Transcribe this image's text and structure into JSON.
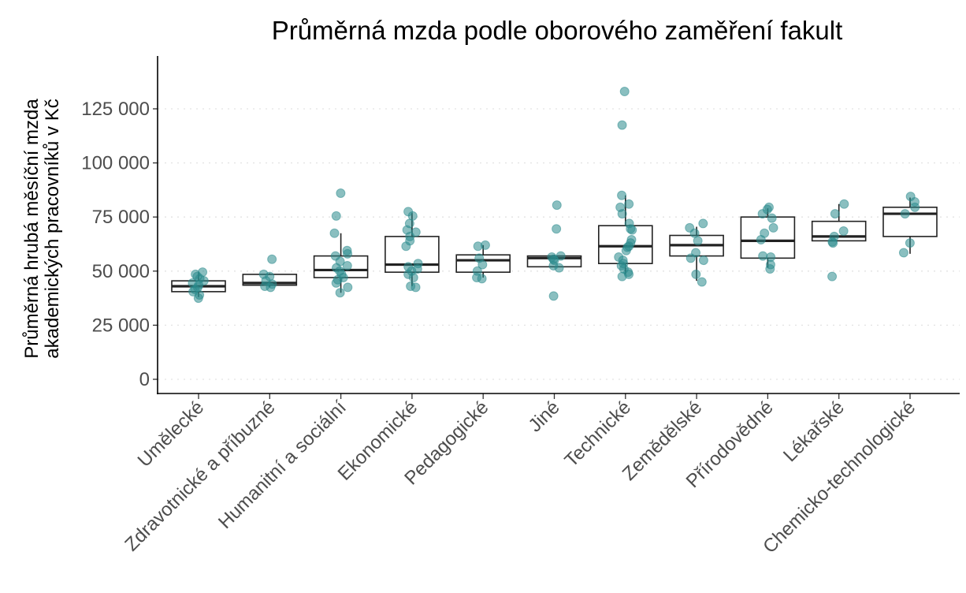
{
  "chart_data": {
    "type": "box",
    "title": "Průměrná mzda podle oborového zaměření fakult",
    "ylabel": [
      "Průměrná hrubá měsíční mzda",
      "akademických pracovníků v Kč"
    ],
    "xlabel": "",
    "ylim": [
      -7000,
      150000
    ],
    "yticks": [
      0,
      25000,
      50000,
      75000,
      100000,
      125000
    ],
    "ytick_labels": [
      "0",
      "25 000",
      "50 000",
      "75 000",
      "100 000",
      "125 000"
    ],
    "grid": "horizontal dotted major",
    "legend": "none",
    "point_color": "#2a8a8c",
    "categories": [
      "Umělecké",
      "Zdravotnické a příbuzné",
      "Humanitní a sociální",
      "Ekonomické",
      "Pedagogické",
      "Jiné",
      "Technické",
      "Zemědělské",
      "Přírodovědné",
      "Lékařské",
      "Chemicko-technologické"
    ],
    "boxes": [
      {
        "category": "Umělecké",
        "whisker_low": 38000,
        "q1": 40500,
        "median": 43000,
        "q3": 45500,
        "whisker_high": 49500
      },
      {
        "category": "Zdravotnické a příbuzné",
        "whisker_low": 42500,
        "q1": 43500,
        "median": 44500,
        "q3": 48500,
        "whisker_high": 49000
      },
      {
        "category": "Humanitní a sociální",
        "whisker_low": 40000,
        "q1": 47000,
        "median": 50500,
        "q3": 57000,
        "whisker_high": 67500
      },
      {
        "category": "Ekonomické",
        "whisker_low": 43000,
        "q1": 49500,
        "median": 53000,
        "q3": 66000,
        "whisker_high": 77000
      },
      {
        "category": "Pedagogické",
        "whisker_low": 47000,
        "q1": 49500,
        "median": 55000,
        "q3": 57500,
        "whisker_high": 62000
      },
      {
        "category": "Jiné",
        "whisker_low": 52000,
        "q1": 52000,
        "median": 56000,
        "q3": 57000,
        "whisker_high": 57500
      },
      {
        "category": "Technické",
        "whisker_low": 48500,
        "q1": 53500,
        "median": 61500,
        "q3": 71000,
        "whisker_high": 85000
      },
      {
        "category": "Zemědělské",
        "whisker_low": 45500,
        "q1": 57000,
        "median": 62000,
        "q3": 66500,
        "whisker_high": 70500
      },
      {
        "category": "Přírodovědné",
        "whisker_low": 51500,
        "q1": 56000,
        "median": 64000,
        "q3": 75000,
        "whisker_high": 79000
      },
      {
        "category": "Lékařské",
        "whisker_low": 64000,
        "q1": 64000,
        "median": 66000,
        "q3": 73000,
        "whisker_high": 81000
      },
      {
        "category": "Chemicko-technologické",
        "whisker_low": 58000,
        "q1": 66000,
        "median": 76500,
        "q3": 79500,
        "whisker_high": 84000
      }
    ],
    "points": [
      {
        "category": "Umělecké",
        "values": [
          37500,
          39000,
          40500,
          41500,
          42500,
          43500,
          44500,
          45500,
          46500,
          47500,
          48500,
          49500
        ]
      },
      {
        "category": "Zdravotnické a příbuzné",
        "values": [
          55500,
          48500,
          47500,
          45500,
          44000,
          43000,
          42500
        ]
      },
      {
        "category": "Humanitní a sociální",
        "values": [
          86000,
          75500,
          67500,
          59500,
          58000,
          57000,
          54500,
          52500,
          51500,
          50000,
          48500,
          47000,
          46000,
          44500,
          42500,
          40000
        ]
      },
      {
        "category": "Ekonomické",
        "values": [
          77500,
          75500,
          72000,
          69000,
          68000,
          66000,
          64000,
          61500,
          53500,
          52000,
          51000,
          50000,
          48500,
          47000,
          43000,
          42500
        ]
      },
      {
        "category": "Pedagogické",
        "values": [
          62000,
          61500,
          56000,
          53000,
          50000,
          47000,
          46500
        ]
      },
      {
        "category": "Jiné",
        "values": [
          80500,
          69500,
          57000,
          56500,
          55500,
          55000,
          52500,
          51500,
          38500
        ]
      },
      {
        "category": "Technické",
        "values": [
          133000,
          117500,
          85000,
          81000,
          79500,
          76500,
          72000,
          69500,
          69000,
          64500,
          63000,
          61500,
          61000,
          59500,
          56500,
          55000,
          53500,
          52500,
          51000,
          49500,
          48500,
          47500
        ]
      },
      {
        "category": "Zemědělské",
        "values": [
          72000,
          70000,
          67500,
          64000,
          58500,
          56000,
          55000,
          48500,
          45000
        ]
      },
      {
        "category": "Přírodovědné",
        "values": [
          79500,
          78500,
          76500,
          74500,
          70000,
          67500,
          64500,
          57000,
          56500,
          53000,
          51000
        ]
      },
      {
        "category": "Lékařské",
        "values": [
          81000,
          76500,
          68500,
          66000,
          63500,
          63000,
          47500
        ]
      },
      {
        "category": "Chemicko-technologické",
        "values": [
          84500,
          82000,
          79500,
          76500,
          63000,
          58500
        ]
      }
    ]
  }
}
